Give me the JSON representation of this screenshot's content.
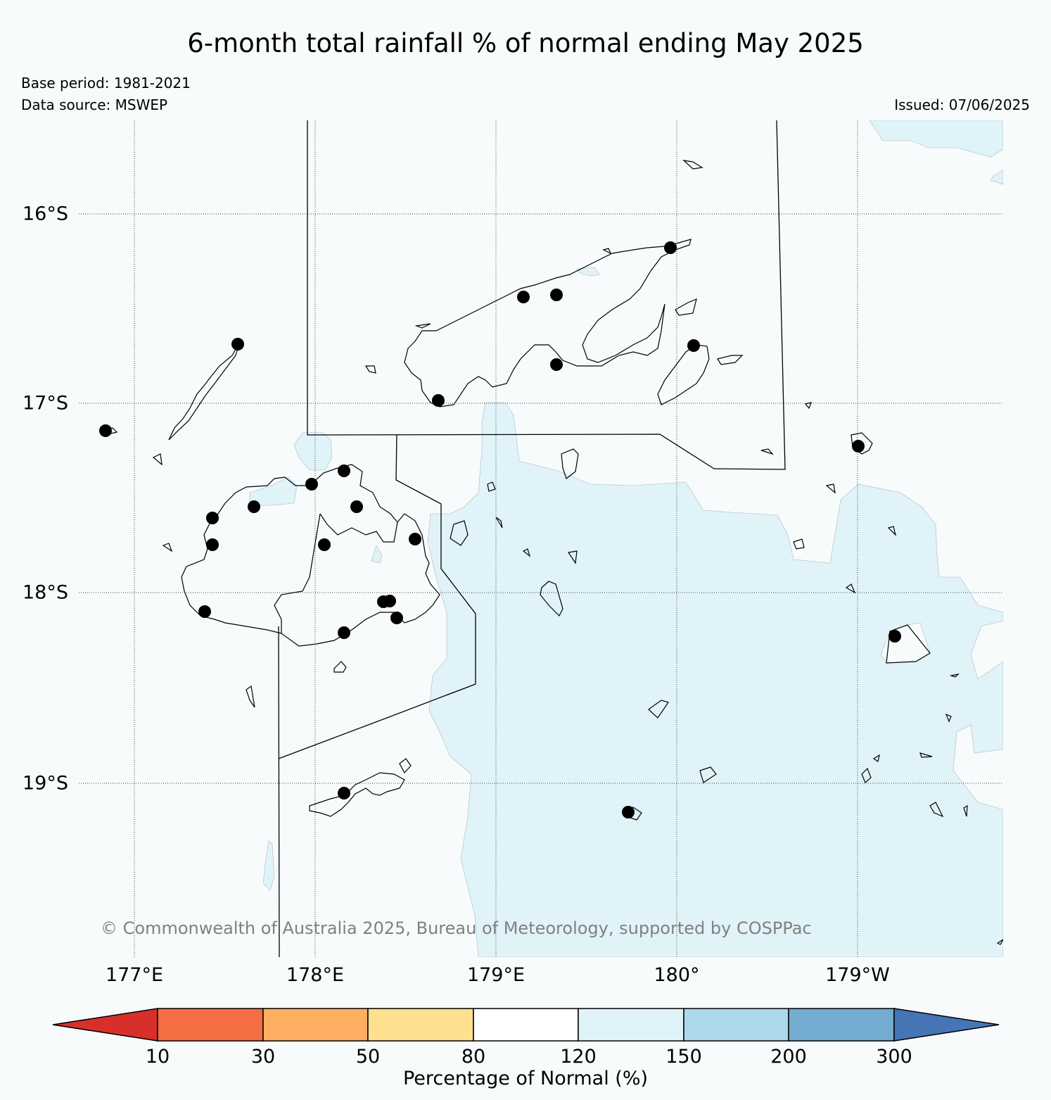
{
  "title": "6-month total rainfall % of normal ending May 2025",
  "base_period": "Base period: 1981-2021",
  "data_source": "Data source: MSWEP",
  "issued": "Issued: 07/06/2025",
  "copyright": "© Commonwealth of Australia 2025, Bureau of Meteorology, supported by COSPPac",
  "latitude_labels": [
    "16°S",
    "17°S",
    "18°S",
    "19°S"
  ],
  "longitude_labels": [
    "177°E",
    "178°E",
    "179°E",
    "180°",
    "179°W"
  ],
  "colorbar": {
    "label": "Percentage of Normal (%)",
    "ticks": [
      "10",
      "30",
      "50",
      "80",
      "120",
      "150",
      "200",
      "300"
    ],
    "colors": [
      "#d7302a",
      "#f46d43",
      "#fdae61",
      "#fee090",
      "#ffffff",
      "#e0f3f8",
      "#abd9e9",
      "#74add1",
      "#4575b4"
    ]
  },
  "legend_colors": {
    "map_background": "#f7fbfc",
    "shading_120_150": "#e0f3f8"
  }
}
